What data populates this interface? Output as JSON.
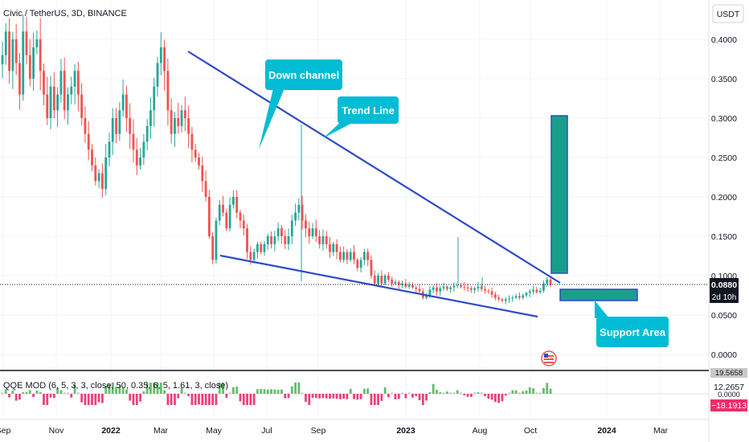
{
  "header": {
    "symbol_label": "Civic / TetherUS, 3D, BINANCE",
    "currency_badge": "USDT"
  },
  "price_badge": {
    "price": "0.0880",
    "countdown": "2d 10h"
  },
  "indicator": {
    "label": "QQE MOD (6, 5, 3, 3, close, 50, 0.35, 6, 5, 1.61, 3, close)",
    "values": [
      "19.5658",
      "12.2657",
      "0.0000",
      "−18.1913"
    ]
  },
  "annotations": {
    "down_channel": "Down channel",
    "trend_line": "Trend Line",
    "support_area": "Support Area"
  },
  "colors": {
    "up": "#26a69a",
    "down": "#ef5350",
    "line": "#2e4bc6",
    "callout": "#00bcd4",
    "target": "#1a9e8c"
  },
  "chart_data": {
    "type": "candlestick",
    "y_ticks": [
      "0.4000",
      "0.3500",
      "0.3000",
      "0.2500",
      "0.2000",
      "0.1500",
      "0.1000",
      "0.0500",
      "0.0000"
    ],
    "ylim": [
      0,
      0.43
    ],
    "x_ticks": [
      "Sep",
      "Nov",
      "2022",
      "Mar",
      "May",
      "Jul",
      "Sep",
      "2023",
      "Aug",
      "Oct",
      "2024",
      "Mar"
    ],
    "series": [
      {
        "close": [
          0.38,
          0.41,
          0.36,
          0.4,
          0.37,
          0.33,
          0.41,
          0.38,
          0.35,
          0.39,
          0.4,
          0.36,
          0.33,
          0.3,
          0.34,
          0.31,
          0.33,
          0.36,
          0.31,
          0.33,
          0.34,
          0.36,
          0.33,
          0.3,
          0.28,
          0.26,
          0.24,
          0.22,
          0.23,
          0.21,
          0.25,
          0.27,
          0.3,
          0.28,
          0.31,
          0.33,
          0.3,
          0.28,
          0.26,
          0.24,
          0.25,
          0.27,
          0.29,
          0.31,
          0.34,
          0.37,
          0.39,
          0.36,
          0.31,
          0.28,
          0.3,
          0.29,
          0.31,
          0.3,
          0.28,
          0.26,
          0.25,
          0.24,
          0.22,
          0.2,
          0.15,
          0.12,
          0.17,
          0.19,
          0.18,
          0.16,
          0.19,
          0.2,
          0.18,
          0.17,
          0.16,
          0.13,
          0.12,
          0.13,
          0.14,
          0.13,
          0.14,
          0.15,
          0.14,
          0.15,
          0.16,
          0.15,
          0.14,
          0.15,
          0.17,
          0.18,
          0.19,
          0.17,
          0.16,
          0.15,
          0.16,
          0.15,
          0.14,
          0.15,
          0.14,
          0.13,
          0.14,
          0.13,
          0.12,
          0.13,
          0.12,
          0.13,
          0.12,
          0.11,
          0.12,
          0.13,
          0.12,
          0.1,
          0.09,
          0.1,
          0.09,
          0.1,
          0.095,
          0.09,
          0.092,
          0.088,
          0.09,
          0.086,
          0.088,
          0.085,
          0.083,
          0.08,
          0.072,
          0.075,
          0.082,
          0.085,
          0.08,
          0.084,
          0.086,
          0.083,
          0.085,
          0.087,
          0.088,
          0.086,
          0.085,
          0.084,
          0.082,
          0.084,
          0.086,
          0.083,
          0.081,
          0.08,
          0.076,
          0.072,
          0.07,
          0.068,
          0.07,
          0.071,
          0.072,
          0.074,
          0.072,
          0.075,
          0.078,
          0.08,
          0.082,
          0.079,
          0.081,
          0.09,
          0.095,
          0.088
        ]
      }
    ],
    "trend_lines": [
      {
        "name": "Trend Line",
        "from": [
          0.0,
          0.385
        ],
        "to": [
          1.0,
          0.1
        ]
      },
      {
        "name": "Down channel lower",
        "from": [
          0.0,
          0.124
        ],
        "to": [
          1.0,
          0.047
        ]
      }
    ],
    "target_box": [
      0.1,
      0.3
    ],
    "support_zone": [
      0.072,
      0.08
    ]
  }
}
